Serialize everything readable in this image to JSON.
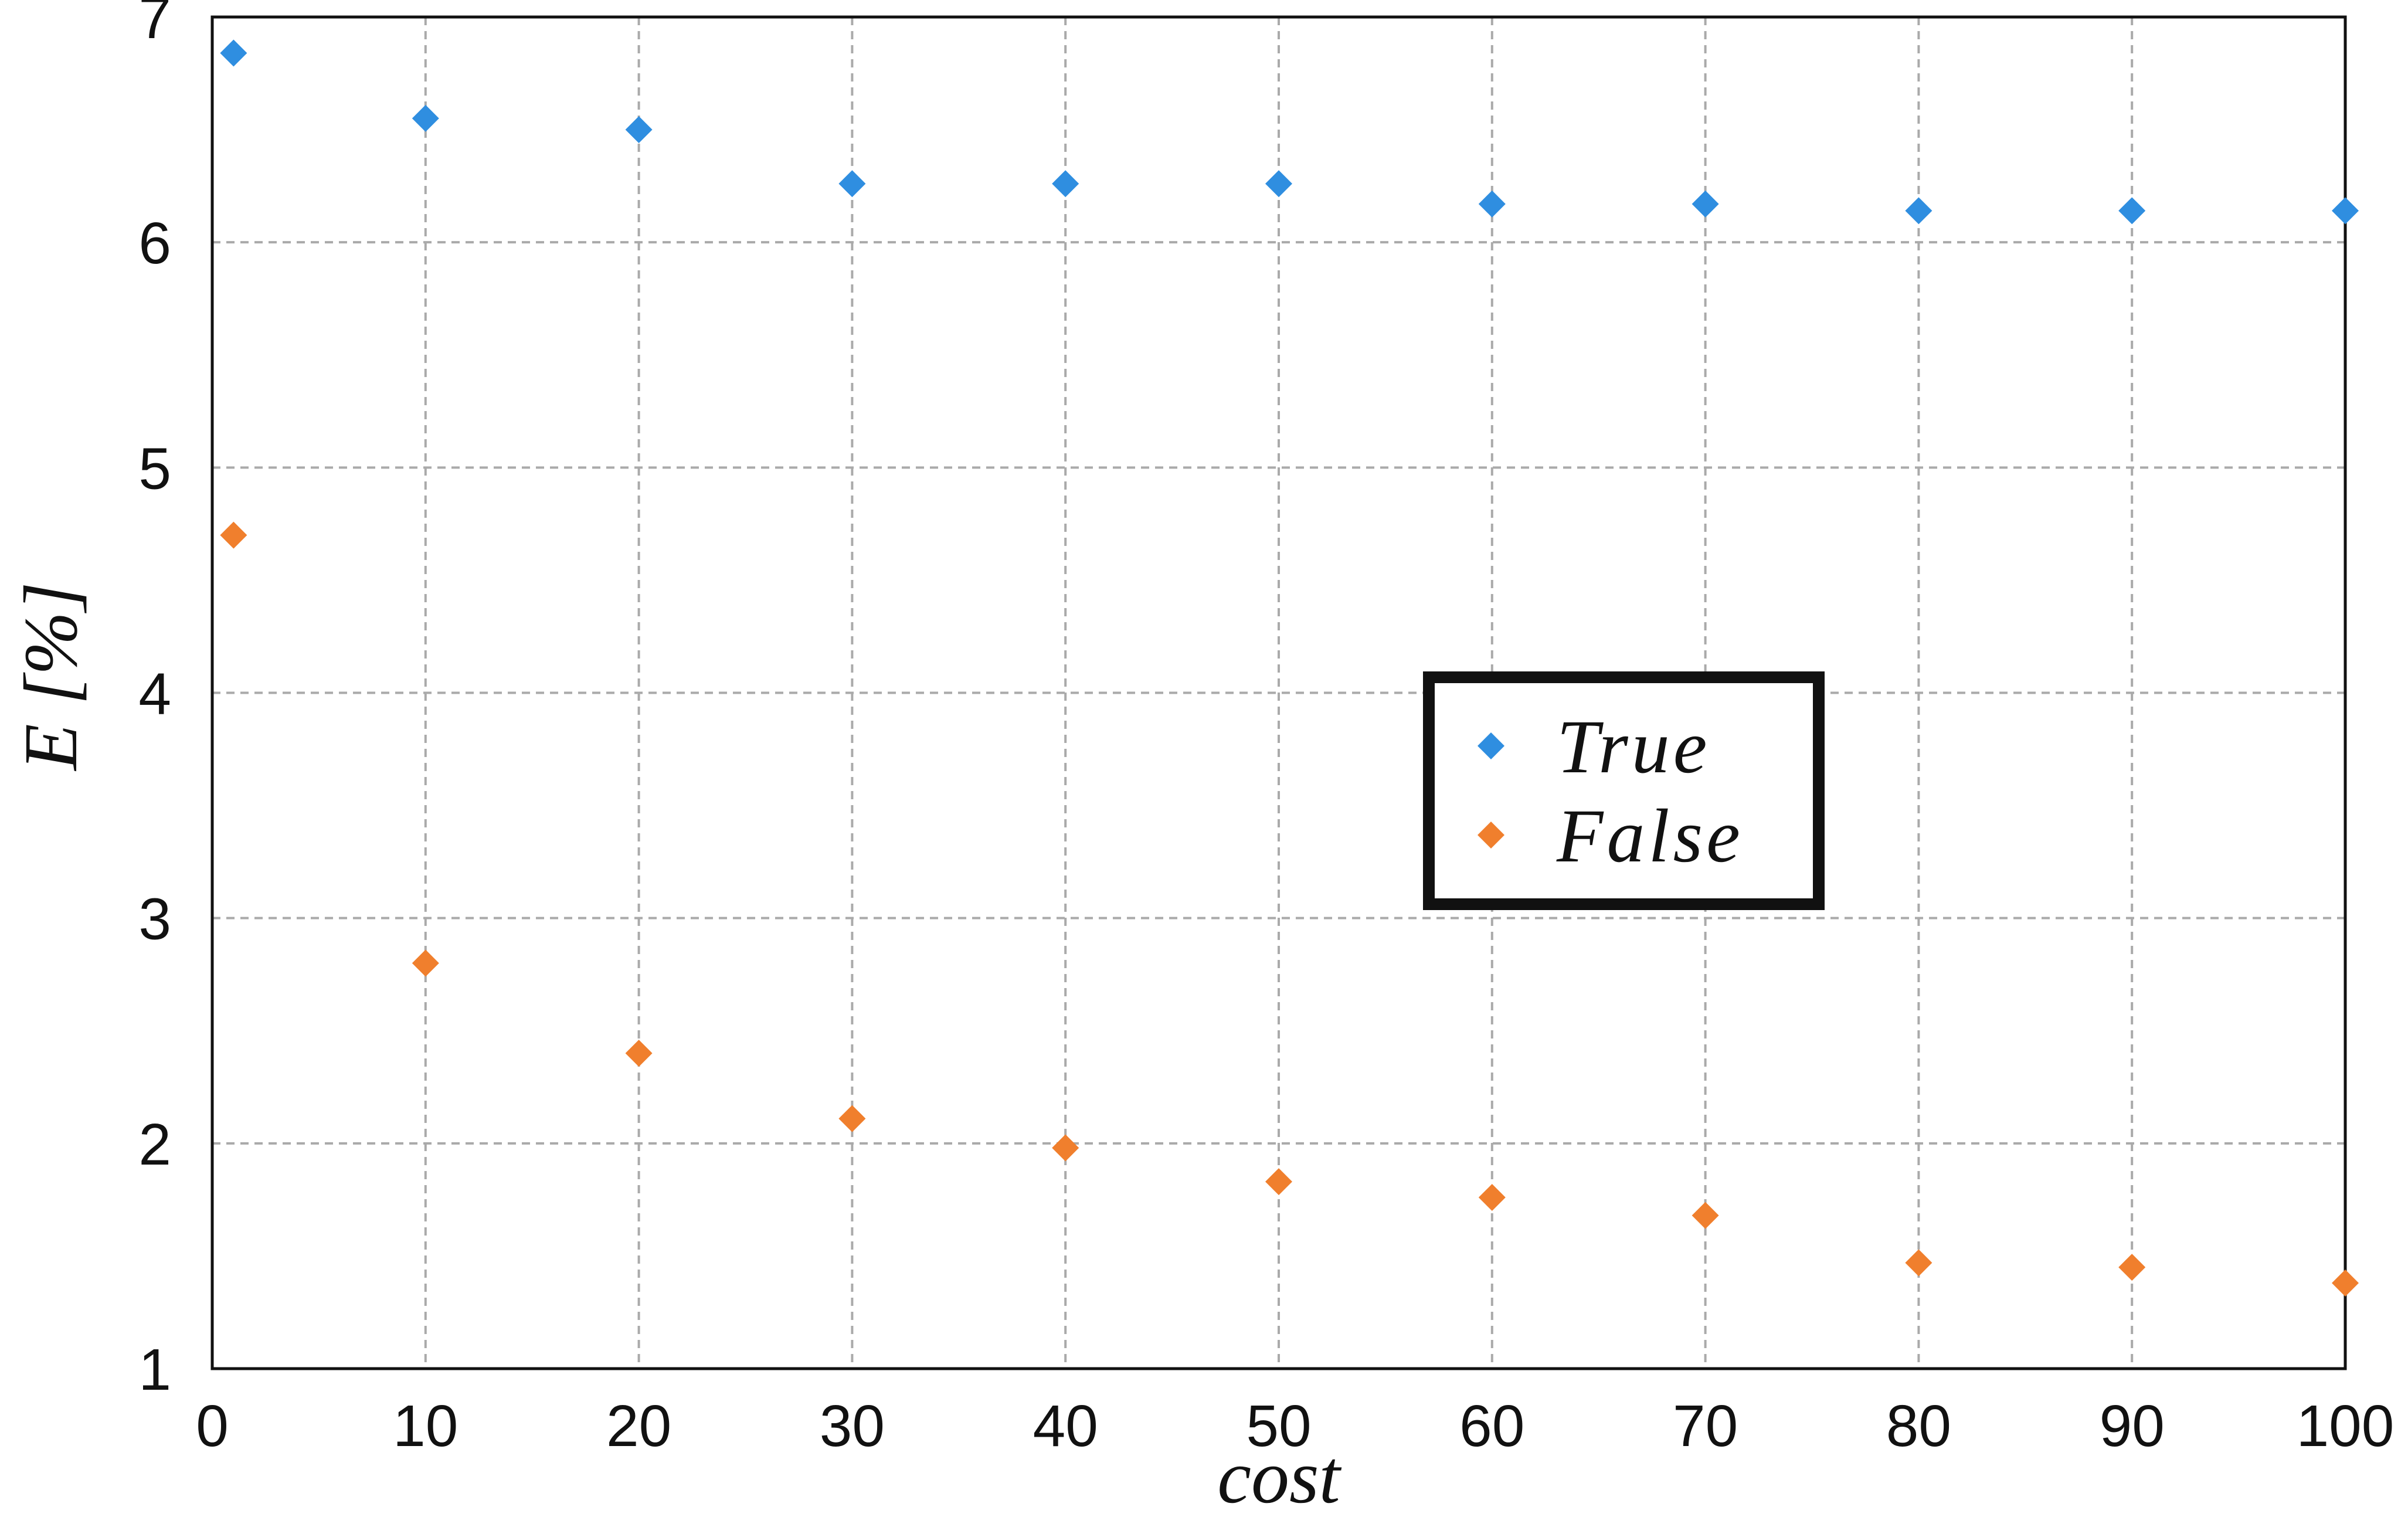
{
  "chart_data": {
    "type": "scatter",
    "title": "",
    "xlabel": "cost",
    "ylabel": "E [%]",
    "xlim": [
      0,
      100
    ],
    "ylim": [
      1,
      7
    ],
    "xticks": [
      "0",
      "10",
      "20",
      "30",
      "40",
      "50",
      "60",
      "70",
      "80",
      "90",
      "100"
    ],
    "yticks": [
      "1",
      "2",
      "3",
      "4",
      "5",
      "6",
      "7"
    ],
    "grid": true,
    "legend_position": "center-right",
    "marker": "diamond",
    "series": [
      {
        "name": "True",
        "color": "#2f8ee0",
        "x": [
          1,
          10,
          20,
          30,
          40,
          50,
          60,
          70,
          80,
          90,
          100
        ],
        "y": [
          6.84,
          6.55,
          6.5,
          6.26,
          6.26,
          6.26,
          6.17,
          6.17,
          6.14,
          6.14,
          6.14
        ]
      },
      {
        "name": "False",
        "color": "#f07f2d",
        "x": [
          1,
          10,
          20,
          30,
          40,
          50,
          60,
          70,
          80,
          90,
          100
        ],
        "y": [
          4.7,
          2.8,
          2.4,
          2.11,
          1.98,
          1.83,
          1.76,
          1.68,
          1.47,
          1.45,
          1.38
        ]
      }
    ]
  }
}
